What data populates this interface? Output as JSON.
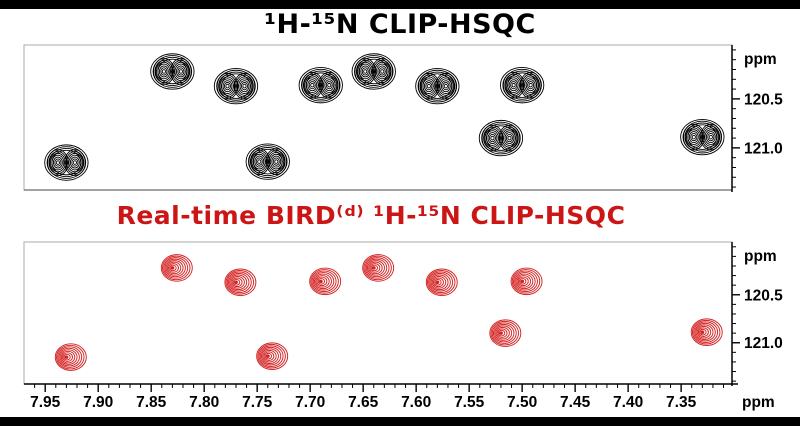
{
  "titles": {
    "top": "¹H-¹⁵N CLIP-HSQC",
    "bottom": "Real-time BIRD⁽ᵈ⁾ ¹H-¹⁵N CLIP-HSQC"
  },
  "colors": {
    "top_title": "#000000",
    "bottom_title": "#cc1616",
    "top_contours": "#000000",
    "bottom_contours": "#d42222",
    "axis": "#000000",
    "panel_border": "#aaaaaa"
  },
  "chart_data": [
    {
      "type": "scatter",
      "subtype": "2d-nmr-contour-spectrum",
      "title": "¹H-¹⁵N CLIP-HSQC",
      "peak_style": "doublet-contours",
      "color": "#000000",
      "xlabel": "ppm",
      "ylabel": "ppm",
      "axis_unit": "ppm",
      "xlim": [
        7.97,
        7.302
      ],
      "ylim": [
        119.95,
        121.43
      ],
      "x_major_ticks": [
        7.95,
        7.9,
        7.85,
        7.8,
        7.75,
        7.7,
        7.65,
        7.6,
        7.55,
        7.5,
        7.45,
        7.4,
        7.35
      ],
      "x_minor_step": 0.01,
      "x_axis_visible": false,
      "y_major_ticks": [
        120.5,
        121.0
      ],
      "y_minor_step": 0.1,
      "peaks": [
        {
          "h": 7.83,
          "n": 120.22
        },
        {
          "h": 7.77,
          "n": 120.37
        },
        {
          "h": 7.69,
          "n": 120.36
        },
        {
          "h": 7.64,
          "n": 120.22
        },
        {
          "h": 7.58,
          "n": 120.37
        },
        {
          "h": 7.5,
          "n": 120.36
        },
        {
          "h": 7.52,
          "n": 120.9
        },
        {
          "h": 7.33,
          "n": 120.89
        },
        {
          "h": 7.93,
          "n": 121.15
        },
        {
          "h": 7.74,
          "n": 121.14
        }
      ]
    },
    {
      "type": "scatter",
      "subtype": "2d-nmr-contour-spectrum",
      "title": "Real-time BIRD⁽ᵈ⁾ ¹H-¹⁵N CLIP-HSQC",
      "peak_style": "singlet-contours",
      "color": "#d42222",
      "xlabel": "ppm",
      "ylabel": "ppm",
      "axis_unit": "ppm",
      "xlim": [
        7.97,
        7.302
      ],
      "ylim": [
        119.95,
        121.43
      ],
      "x_major_ticks": [
        7.95,
        7.9,
        7.85,
        7.8,
        7.75,
        7.7,
        7.65,
        7.6,
        7.55,
        7.5,
        7.45,
        7.4,
        7.35
      ],
      "x_minor_step": 0.01,
      "x_axis_visible": true,
      "y_major_ticks": [
        120.5,
        121.0
      ],
      "y_minor_step": 0.1,
      "peaks": [
        {
          "h": 7.83,
          "n": 120.22
        },
        {
          "h": 7.77,
          "n": 120.37
        },
        {
          "h": 7.69,
          "n": 120.36
        },
        {
          "h": 7.64,
          "n": 120.22
        },
        {
          "h": 7.58,
          "n": 120.37
        },
        {
          "h": 7.5,
          "n": 120.36
        },
        {
          "h": 7.52,
          "n": 120.9
        },
        {
          "h": 7.33,
          "n": 120.89
        },
        {
          "h": 7.93,
          "n": 121.15
        },
        {
          "h": 7.74,
          "n": 121.14
        }
      ]
    }
  ]
}
